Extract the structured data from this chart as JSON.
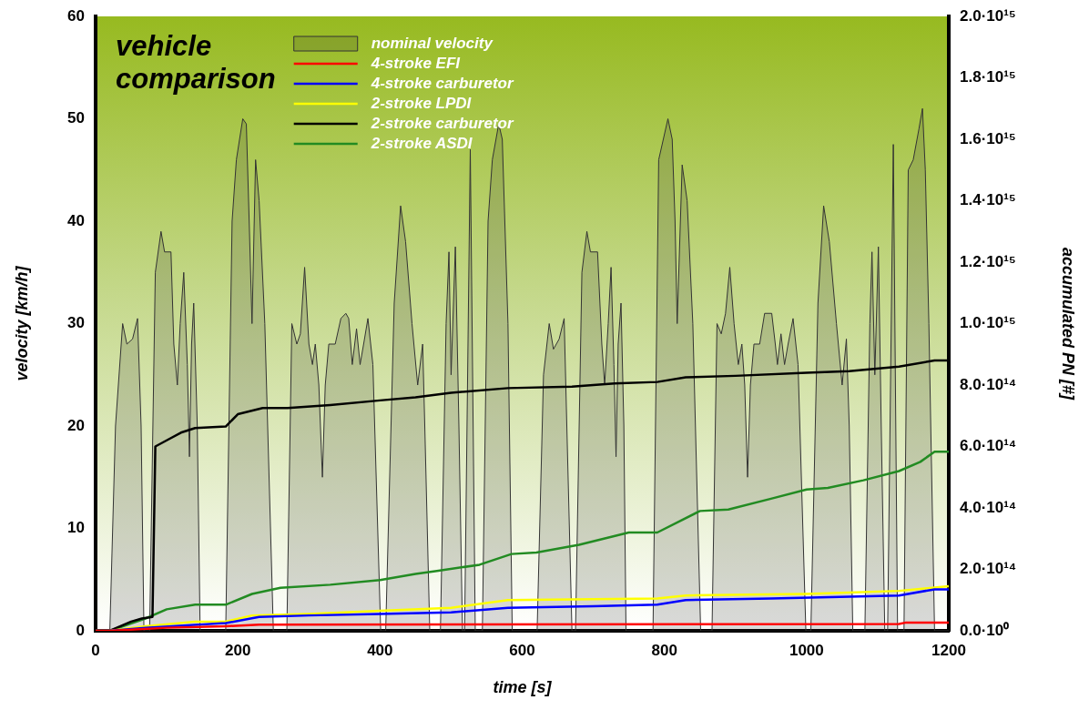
{
  "chart_data": {
    "type": "line",
    "title": "vehicle comparison",
    "xlabel": "time [s]",
    "ylabel": "velocity [km/h]",
    "y2label": "accumulated PN [#]",
    "xlim": [
      0,
      1200
    ],
    "xticks": [
      0,
      200,
      400,
      600,
      800,
      1000,
      1200
    ],
    "ylim": [
      0,
      60
    ],
    "yticks": [
      0,
      10,
      20,
      30,
      40,
      50,
      60
    ],
    "y2lim": [
      0,
      2000000000000000.0
    ],
    "y2ticks": [
      {
        "value": 0,
        "label": "0.0·10⁰"
      },
      {
        "value": 200000000000000.0,
        "label": "2.0·10¹⁴"
      },
      {
        "value": 400000000000000.0,
        "label": "4.0·10¹⁴"
      },
      {
        "value": 600000000000000.0,
        "label": "6.0·10¹⁴"
      },
      {
        "value": 800000000000000.0,
        "label": "8.0·10¹⁴"
      },
      {
        "value": 1000000000000000.0,
        "label": "1.0·10¹⁵"
      },
      {
        "value": 1200000000000000.0,
        "label": "1.2·10¹⁵"
      },
      {
        "value": 1400000000000000.0,
        "label": "1.4·10¹⁵"
      },
      {
        "value": 1600000000000000.0,
        "label": "1.6·10¹⁵"
      },
      {
        "value": 1800000000000000.0,
        "label": "1.8·10¹⁵"
      },
      {
        "value": 2000000000000000.0,
        "label": "2.0·10¹⁵"
      }
    ],
    "grid": false,
    "legend": "top left",
    "marker": "none",
    "series": [
      {
        "name": "nominal velocity",
        "type": "area",
        "color": "#333333",
        "x": [
          0,
          20,
          28,
          38,
          44,
          52,
          59,
          64,
          68,
          76,
          84,
          92,
          97,
          106,
          110,
          115,
          119,
          124,
          129,
          132,
          135,
          138,
          143,
          147,
          183,
          192,
          198,
          207,
          212,
          216,
          220,
          225,
          230,
          238,
          250,
          269,
          276,
          283,
          288,
          294,
          300,
          305,
          309,
          314,
          319,
          323,
          328,
          337,
          345,
          352,
          356,
          361,
          367,
          372,
          377,
          383,
          390,
          401,
          408,
          420,
          429,
          436,
          445,
          453,
          460,
          463,
          470,
          485,
          493,
          497,
          500,
          506,
          511,
          516,
          519,
          527,
          534,
          544,
          552,
          558,
          567,
          572,
          580,
          586,
          621,
          630,
          638,
          644,
          652,
          659,
          670,
          675,
          684,
          691,
          696,
          706,
          712,
          716,
          721,
          725,
          729,
          732,
          735,
          739,
          743,
          746,
          784,
          792,
          805,
          811,
          815,
          818,
          825,
          832,
          840,
          851,
          867,
          874,
          880,
          886,
          892,
          898,
          904,
          909,
          913,
          917,
          921,
          926,
          934,
          941,
          951,
          956,
          959,
          964,
          969,
          974,
          981,
          988,
          999,
          1006,
          1016,
          1024,
          1032,
          1042,
          1050,
          1056,
          1060,
          1065,
          1082,
          1089,
          1092,
          1096,
          1101,
          1105,
          1110,
          1114,
          1122,
          1128,
          1137,
          1143,
          1150,
          1158,
          1163,
          1167,
          1172,
          1180,
          1200
        ],
        "values": [
          0,
          0,
          20,
          30,
          28,
          28.5,
          30.5,
          20,
          0,
          0,
          35,
          39,
          37,
          37,
          28,
          24,
          30,
          35,
          26,
          17,
          28,
          32,
          20,
          0,
          0,
          40,
          46,
          50,
          49.5,
          40,
          30,
          46,
          42,
          30,
          0,
          0,
          30,
          28,
          29,
          35.5,
          28,
          26,
          28,
          24,
          15,
          24,
          28,
          28,
          30.5,
          31,
          30.5,
          26,
          29.5,
          26,
          28,
          30.5,
          26,
          0,
          0,
          32,
          41.5,
          38,
          30,
          24,
          28,
          20,
          0,
          0,
          30,
          37,
          25,
          37.5,
          20,
          0,
          0,
          47,
          0,
          0,
          40,
          46,
          49.5,
          48,
          30,
          0,
          0,
          25,
          30,
          27.5,
          28.5,
          30.5,
          0,
          0,
          35,
          39,
          37,
          37,
          28,
          24,
          30,
          35.5,
          26,
          17,
          28,
          32,
          20,
          0,
          0,
          46,
          50,
          48,
          40,
          30,
          45.5,
          42,
          30,
          0,
          0,
          30,
          29,
          31,
          35.5,
          30,
          26,
          28,
          24,
          15,
          24,
          28,
          28,
          31,
          31,
          28,
          26,
          29,
          26,
          28,
          30.5,
          26,
          0,
          0,
          32,
          41.5,
          38,
          30,
          24,
          28.5,
          20,
          0,
          0,
          30,
          37,
          25,
          37.5,
          20,
          0,
          0,
          47.5,
          0,
          0,
          45,
          46,
          49,
          51,
          45,
          30,
          0,
          0
        ]
      },
      {
        "name": "4-stroke EFI",
        "type": "line",
        "axis": "y2",
        "color": "#ff0000",
        "x": [
          0,
          20,
          100,
          183,
          230,
          1130,
          1140,
          1200
        ],
        "values": [
          0,
          0,
          10000000000000.0,
          15000000000000.0,
          20000000000000.0,
          22000000000000.0,
          27000000000000.0,
          27000000000000.0
        ]
      },
      {
        "name": "4-stroke carburetor",
        "type": "line",
        "axis": "y2",
        "color": "#0000ff",
        "x": [
          0,
          20,
          70,
          183,
          230,
          300,
          400,
          500,
          580,
          700,
          790,
          830,
          950,
          1130,
          1180,
          1200
        ],
        "values": [
          0,
          0,
          10000000000000.0,
          25000000000000.0,
          45000000000000.0,
          50000000000000.0,
          55000000000000.0,
          60000000000000.0,
          75000000000000.0,
          80000000000000.0,
          85000000000000.0,
          100000000000000.0,
          105000000000000.0,
          115000000000000.0,
          135000000000000.0,
          135000000000000.0
        ]
      },
      {
        "name": "2-stroke LPDI",
        "type": "line",
        "axis": "y2",
        "color": "#ffff00",
        "x": [
          0,
          20,
          70,
          140,
          183,
          220,
          300,
          400,
          500,
          580,
          790,
          830,
          1000,
          1130,
          1200
        ],
        "values": [
          0,
          0,
          15000000000000.0,
          30000000000000.0,
          30000000000000.0,
          50000000000000.0,
          55000000000000.0,
          65000000000000.0,
          75000000000000.0,
          100000000000000.0,
          105000000000000.0,
          115000000000000.0,
          120000000000000.0,
          130000000000000.0,
          145000000000000.0
        ]
      },
      {
        "name": "2-stroke carburetor",
        "type": "line",
        "axis": "y2",
        "color": "#000000",
        "x": [
          0,
          20,
          50,
          65,
          80,
          84,
          100,
          120,
          140,
          183,
          200,
          235,
          270,
          330,
          400,
          450,
          500,
          580,
          670,
          730,
          790,
          830,
          900,
          1000,
          1060,
          1130,
          1180,
          1200
        ],
        "values": [
          0,
          0,
          30000000000000.0,
          40000000000000.0,
          45000000000000.0,
          600000000000000.0,
          620000000000000.0,
          645000000000000.0,
          660000000000000.0,
          665000000000000.0,
          705000000000000.0,
          725000000000000.0,
          725000000000000.0,
          735000000000000.0,
          750000000000000.0,
          760000000000000.0,
          775000000000000.0,
          790000000000000.0,
          795000000000000.0,
          805000000000000.0,
          810000000000000.0,
          825000000000000.0,
          830000000000000.0,
          840000000000000.0,
          845000000000000.0,
          860000000000000.0,
          880000000000000.0,
          880000000000000.0
        ]
      },
      {
        "name": "2-stroke ASDI",
        "type": "line",
        "axis": "y2",
        "color": "#228b22",
        "x": [
          0,
          20,
          70,
          100,
          140,
          183,
          220,
          260,
          330,
          400,
          450,
          480,
          540,
          585,
          620,
          680,
          750,
          790,
          850,
          890,
          950,
          1000,
          1030,
          1080,
          1130,
          1160,
          1180,
          1200
        ],
        "values": [
          0,
          0,
          40000000000000.0,
          70000000000000.0,
          85000000000000.0,
          85000000000000.0,
          120000000000000.0,
          140000000000000.0,
          150000000000000.0,
          165000000000000.0,
          185000000000000.0,
          195000000000000.0,
          215000000000000.0,
          250000000000000.0,
          255000000000000.0,
          280000000000000.0,
          320000000000000.0,
          320000000000000.0,
          390000000000000.0,
          395000000000000.0,
          430000000000000.0,
          460000000000000.0,
          465000000000000.0,
          490000000000000.0,
          520000000000000.0,
          550000000000000.0,
          583000000000000.0,
          583000000000000.0
        ]
      }
    ]
  }
}
